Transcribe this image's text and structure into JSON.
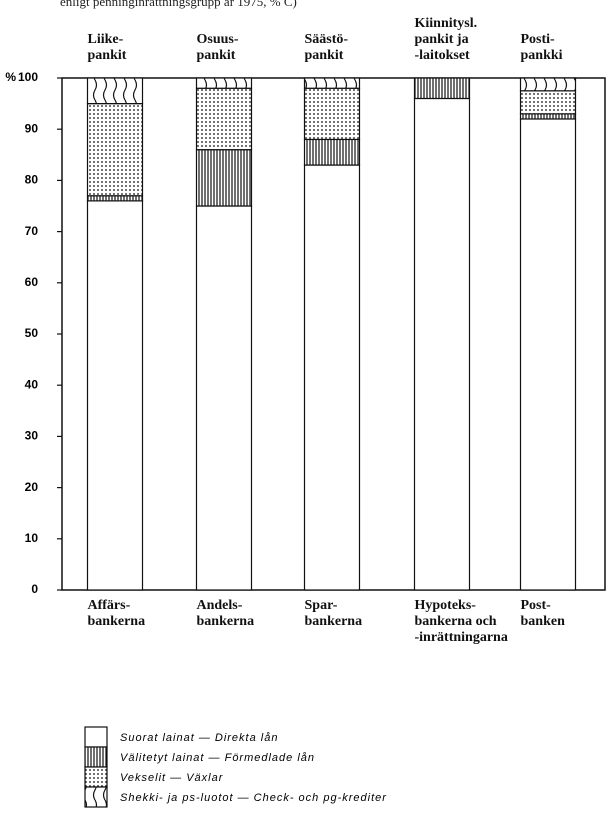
{
  "chart_data": {
    "type": "stacked_bar",
    "title": "enligt penninginrättningsgrupp år 1975, % C)",
    "categories": [
      "Liike-\npankit",
      "Osuus-\npankit",
      "Säästö-\npankit",
      "Kiinnitysl.\npankit ja\n-laitokset",
      "Posti-\npankki"
    ],
    "categories_bottom": [
      "Affärs-\nbankerna",
      "Andels-\nbankerna",
      "Spar-\nbankerna",
      "Hypoteks-\nbankerna och\n-inrättningarna",
      "Post-\nbanken"
    ],
    "y_unit": "%",
    "ylim": [
      0,
      100
    ],
    "yticks": [
      0,
      10,
      20,
      30,
      40,
      50,
      60,
      70,
      80,
      90,
      100
    ],
    "series": [
      {
        "name": "Suorat lainat — Direkta lån",
        "color": "#ffffff",
        "pattern": "none",
        "values": [
          76,
          75,
          83,
          96,
          92
        ]
      },
      {
        "name": "Välitetyt lainat — Förmedlade lån",
        "color": "#111111",
        "pattern": "vlines",
        "values": [
          1,
          11,
          5,
          4,
          1
        ]
      },
      {
        "name": "Vekselit — Växlar",
        "color": "#111111",
        "pattern": "dots",
        "values": [
          18,
          12,
          10,
          0,
          4.5
        ]
      },
      {
        "name": "Shekki- ja ps-luotot — Check- och pg-krediter",
        "color": "#111111",
        "pattern": "waves",
        "values": [
          5,
          2,
          2,
          0,
          2.5
        ]
      }
    ]
  }
}
